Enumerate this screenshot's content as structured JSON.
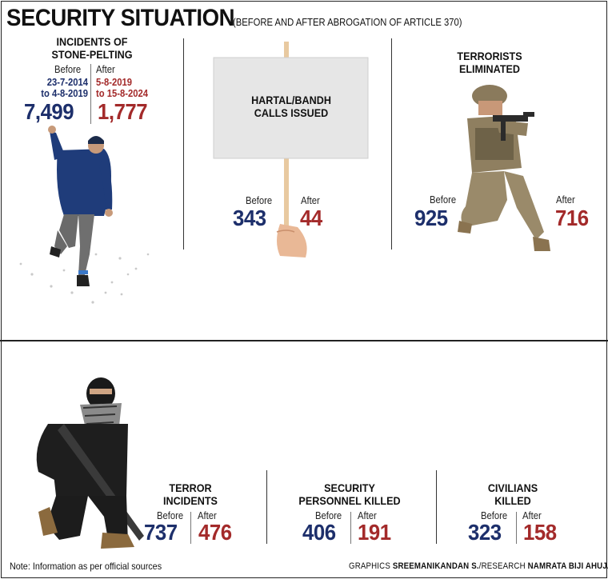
{
  "title": "SECURITY SITUATION",
  "subtitle": "(BEFORE  AND AFTER ABROGATION OF ARTICLE 370)",
  "before_label": "Before",
  "after_label": "After",
  "colors": {
    "before": "#1d2f6b",
    "after": "#a32a2a"
  },
  "stone_pelting": {
    "heading_line1": "INCIDENTS OF",
    "heading_line2": "STONE-PELTING",
    "before_dates_line1": "23-7-2014",
    "before_dates_line2": "to 4-8-2019",
    "after_dates_line1": "5-8-2019",
    "after_dates_line2": "to 15-8-2024",
    "before": "7,499",
    "after": "1,777"
  },
  "hartal": {
    "heading_line1": "HARTAL/BANDH",
    "heading_line2": "CALLS ISSUED",
    "before": "343",
    "after": "44"
  },
  "terrorists_eliminated": {
    "heading_line1": "TERRORISTS",
    "heading_line2": "ELIMINATED",
    "before": "925",
    "after": "716"
  },
  "terror_incidents": {
    "heading_line1": "TERROR",
    "heading_line2": "INCIDENTS",
    "before": "737",
    "after": "476"
  },
  "security_personnel": {
    "heading_line1": "SECURITY",
    "heading_line2": "PERSONNEL KILLED",
    "before": "406",
    "after": "191"
  },
  "civilians": {
    "heading_line1": "CIVILIANS",
    "heading_line2": "KILLED",
    "before": "323",
    "after": "158"
  },
  "note": "Note: Information as per official sources",
  "credit": {
    "prefix1": "GRAPHICS ",
    "name1": "SREEMANIKANDAN S.",
    "prefix2": "/RESEARCH ",
    "name2": "NAMRATA BIJI AHUJA"
  },
  "chart_data": {
    "type": "table",
    "columns": [
      "Before",
      "After"
    ],
    "rows": [
      {
        "category": "INCIDENTS OF STONE-PELTING",
        "before": 7499,
        "after": 1777
      },
      {
        "category": "HARTAL/BANDH CALLS ISSUED",
        "before": 343,
        "after": 44
      },
      {
        "category": "TERRORISTS ELIMINATED",
        "before": 925,
        "after": 716
      },
      {
        "category": "TERROR INCIDENTS",
        "before": 737,
        "after": 476
      },
      {
        "category": "SECURITY PERSONNEL KILLED",
        "before": 406,
        "after": 191
      },
      {
        "category": "CIVILIANS KILLED",
        "before": 323,
        "after": 158
      }
    ]
  }
}
